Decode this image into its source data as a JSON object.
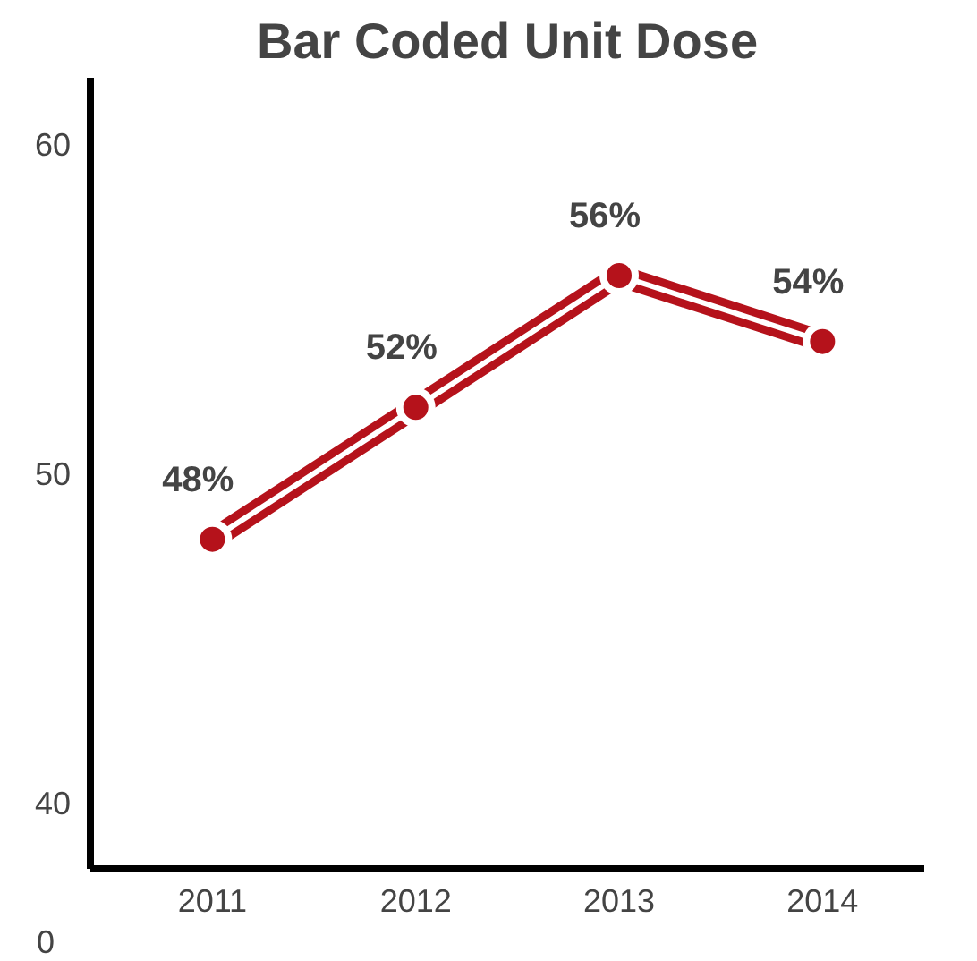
{
  "chart_data": {
    "type": "line",
    "title": "Bar Coded Unit Dose",
    "categories": [
      "2011",
      "2012",
      "2013",
      "2014"
    ],
    "series": [
      {
        "color": "#b5121b",
        "values": [
          48,
          52,
          56,
          54
        ]
      }
    ],
    "ylim": [
      38,
      62
    ],
    "yticks": [
      40,
      50,
      60
    ],
    "value_labels": [
      "48%",
      "52%",
      "56%",
      "54%"
    ],
    "marker": "circle",
    "line_style": "solid",
    "grid": false,
    "annotations": [
      "0"
    ]
  }
}
